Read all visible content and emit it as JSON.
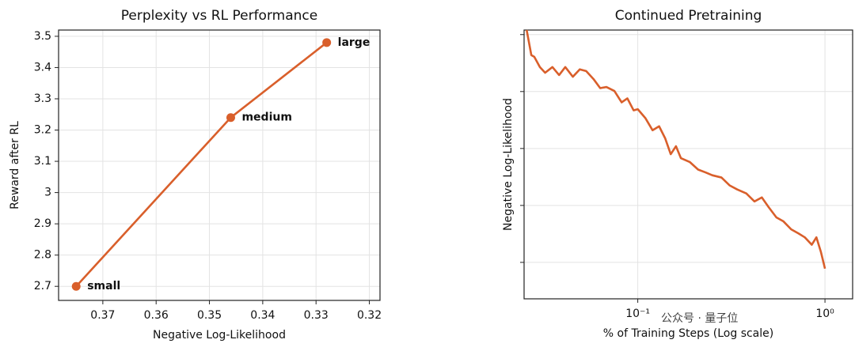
{
  "chart_data": [
    {
      "type": "line",
      "title": "Perplexity vs RL Performance",
      "x_label": "Negative Log-Likelihood",
      "y_label": "Reward after RL",
      "x": [
        0.375,
        0.346,
        0.328
      ],
      "point_labels": [
        "small",
        "medium",
        "large"
      ],
      "series": [
        {
          "color": "#d95f2b",
          "values": [
            2.7,
            3.24,
            3.48
          ]
        }
      ],
      "markers": true,
      "xscale": "linear",
      "xlim": [
        0.3783,
        0.318
      ],
      "xticks": [
        0.37,
        0.36,
        0.35,
        0.34,
        0.33,
        0.32
      ],
      "ylim": [
        2.655,
        3.52
      ],
      "yticks": [
        2.7,
        2.8,
        2.9,
        3.0,
        3.1,
        3.2,
        3.3,
        3.4,
        3.5
      ],
      "ytick_labels": true,
      "grid": true
    },
    {
      "type": "line",
      "title": "Continued Pretraining",
      "x_label": "% of Training Steps (Log scale)",
      "y_label": "Negative Log-Likelihood",
      "x": [
        0.0255,
        0.027,
        0.028,
        0.03,
        0.032,
        0.035,
        0.038,
        0.041,
        0.045,
        0.049,
        0.053,
        0.058,
        0.063,
        0.068,
        0.075,
        0.082,
        0.088,
        0.095,
        0.1,
        0.11,
        0.12,
        0.13,
        0.14,
        0.15,
        0.16,
        0.17,
        0.19,
        0.21,
        0.23,
        0.25,
        0.28,
        0.31,
        0.34,
        0.38,
        0.42,
        0.46,
        0.5,
        0.55,
        0.6,
        0.66,
        0.72,
        0.78,
        0.85,
        0.9,
        0.95,
        1.0
      ],
      "series": [
        {
          "color": "#d95f2b",
          "values": [
            5.08,
            4.64,
            4.61,
            4.43,
            4.33,
            4.43,
            4.29,
            4.43,
            4.26,
            4.39,
            4.36,
            4.22,
            4.06,
            4.08,
            4.01,
            3.81,
            3.88,
            3.67,
            3.69,
            3.53,
            3.32,
            3.39,
            3.18,
            2.9,
            3.04,
            2.83,
            2.76,
            2.63,
            2.58,
            2.53,
            2.49,
            2.35,
            2.28,
            2.21,
            2.07,
            2.14,
            1.97,
            1.79,
            1.72,
            1.58,
            1.51,
            1.44,
            1.31,
            1.44,
            1.19,
            0.89
          ]
        }
      ],
      "markers": false,
      "xscale": "log",
      "xlim": [
        0.0247,
        1.405
      ],
      "xticks": [
        {
          "value": 0.1,
          "label": "10⁻¹"
        },
        {
          "value": 1,
          "label": "10⁰"
        }
      ],
      "ylim": [
        0.36,
        5.08
      ],
      "yticks": [
        1,
        2,
        3,
        4,
        5
      ],
      "ytick_labels": false,
      "grid": true,
      "watermark": "公众号 · 量子位"
    }
  ]
}
